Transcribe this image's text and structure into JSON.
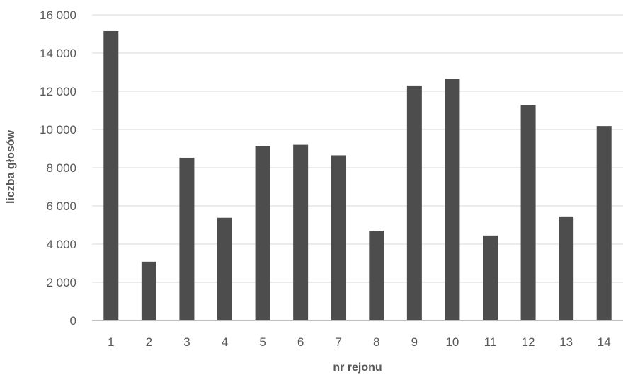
{
  "chart_data": {
    "type": "bar",
    "title": "",
    "xlabel": "nr rejonu",
    "ylabel": "liczba głosów",
    "categories": [
      "1",
      "2",
      "3",
      "4",
      "5",
      "6",
      "7",
      "8",
      "9",
      "10",
      "11",
      "12",
      "13",
      "14"
    ],
    "values": [
      15150,
      3080,
      8520,
      5380,
      9120,
      9200,
      8650,
      4700,
      12300,
      12650,
      4450,
      11280,
      5450,
      10180
    ],
    "ylim": [
      0,
      16000
    ],
    "yticks": [
      0,
      2000,
      4000,
      6000,
      8000,
      10000,
      12000,
      14000,
      16000
    ],
    "ytick_labels": [
      "0",
      "2 000",
      "4 000",
      "6 000",
      "8 000",
      "10 000",
      "12 000",
      "14 000",
      "16 000"
    ],
    "grid": true,
    "legend": "none",
    "colors": {
      "bar": "#4d4d4d",
      "grid": "#d9d9d9",
      "axis": "#bfbfbf",
      "text": "#595959"
    }
  }
}
